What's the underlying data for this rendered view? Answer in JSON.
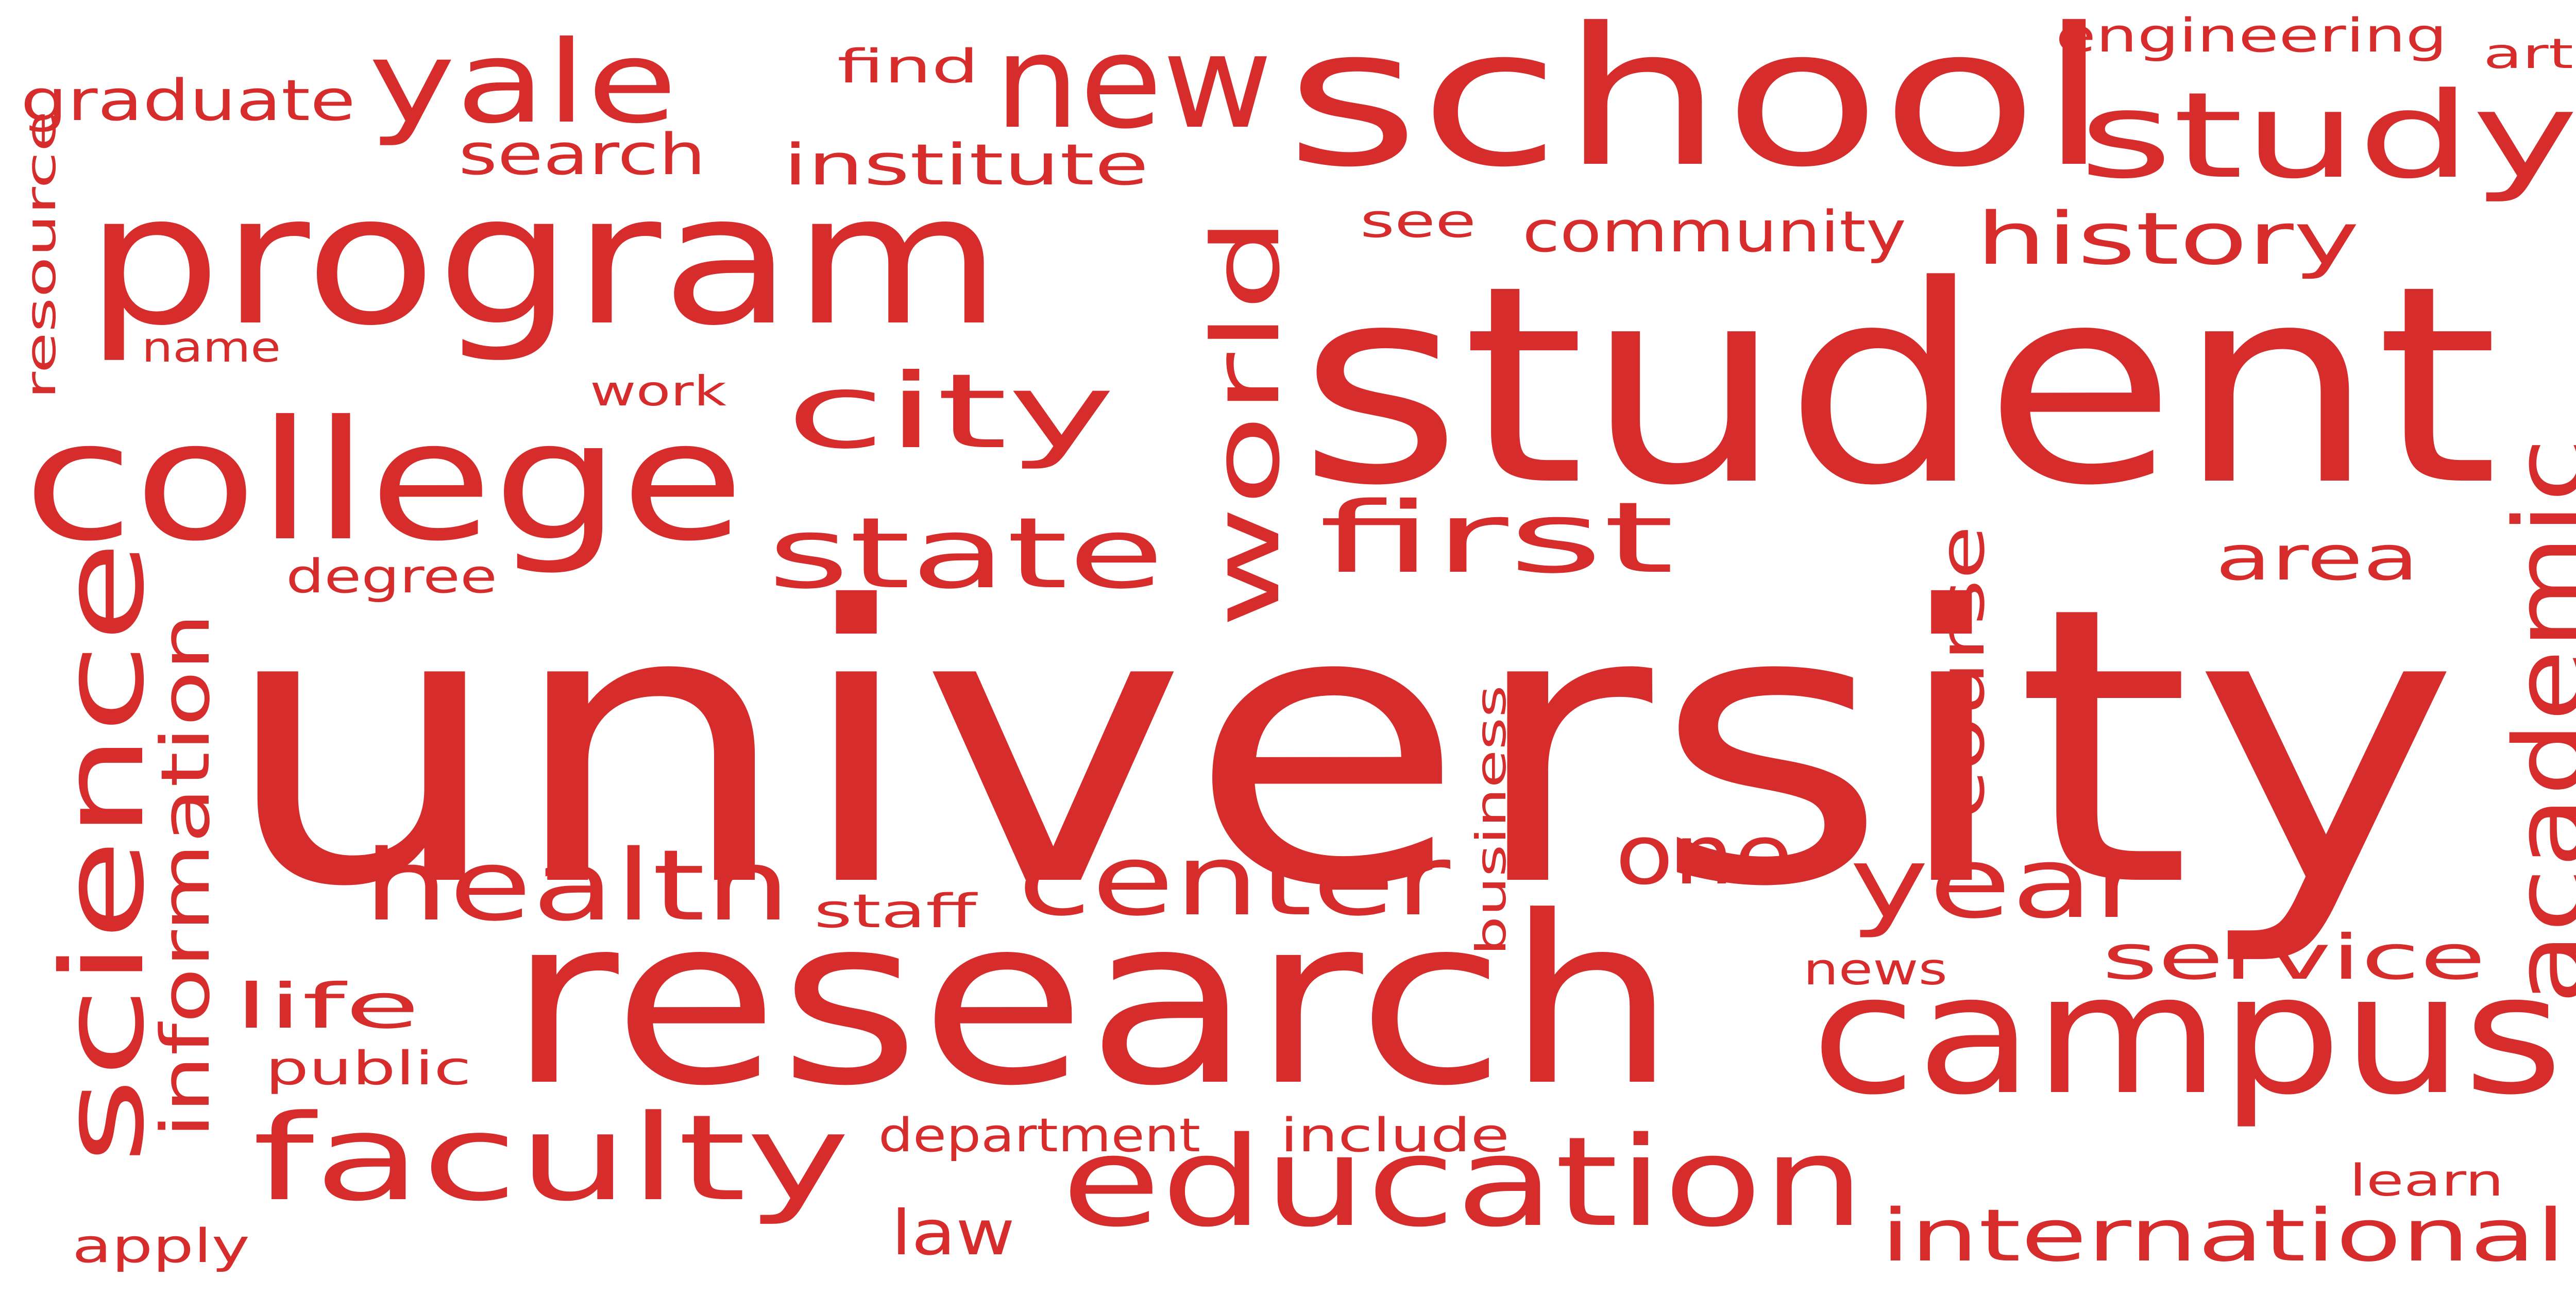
{
  "word_cloud": {
    "color": "#d62c2c",
    "background": "#ffffff",
    "words": [
      {
        "id": "university",
        "text": "university"
      },
      {
        "id": "student",
        "text": "student"
      },
      {
        "id": "research",
        "text": "research"
      },
      {
        "id": "school",
        "text": "school"
      },
      {
        "id": "program",
        "text": "program"
      },
      {
        "id": "campus",
        "text": "campus"
      },
      {
        "id": "college",
        "text": "college"
      },
      {
        "id": "science",
        "text": "science"
      },
      {
        "id": "education",
        "text": "education"
      },
      {
        "id": "faculty",
        "text": "faculty"
      },
      {
        "id": "study",
        "text": "study"
      },
      {
        "id": "new",
        "text": "new"
      },
      {
        "id": "yale",
        "text": "yale"
      },
      {
        "id": "world",
        "text": "world"
      },
      {
        "id": "academic",
        "text": "academic"
      },
      {
        "id": "state",
        "text": "state"
      },
      {
        "id": "first",
        "text": "first"
      },
      {
        "id": "city",
        "text": "city"
      },
      {
        "id": "health",
        "text": "health"
      },
      {
        "id": "center",
        "text": "center"
      },
      {
        "id": "year",
        "text": "year"
      },
      {
        "id": "one",
        "text": "one"
      },
      {
        "id": "international",
        "text": "international"
      },
      {
        "id": "history",
        "text": "history"
      },
      {
        "id": "course",
        "text": "course"
      },
      {
        "id": "information",
        "text": "information"
      },
      {
        "id": "service",
        "text": "service"
      },
      {
        "id": "area",
        "text": "area"
      },
      {
        "id": "life",
        "text": "life"
      },
      {
        "id": "community",
        "text": "community"
      },
      {
        "id": "institute",
        "text": "institute"
      },
      {
        "id": "graduate",
        "text": "graduate"
      },
      {
        "id": "search",
        "text": "search"
      },
      {
        "id": "engineering",
        "text": "engineering"
      },
      {
        "id": "business",
        "text": "business"
      },
      {
        "id": "law",
        "text": "law"
      },
      {
        "id": "department",
        "text": "department"
      },
      {
        "id": "include",
        "text": "include"
      },
      {
        "id": "see",
        "text": "see"
      },
      {
        "id": "find",
        "text": "find"
      },
      {
        "id": "degree",
        "text": "degree"
      },
      {
        "id": "public",
        "text": "public"
      },
      {
        "id": "apply",
        "text": "apply"
      },
      {
        "id": "staff",
        "text": "staff"
      },
      {
        "id": "work",
        "text": "work"
      },
      {
        "id": "name",
        "text": "name"
      },
      {
        "id": "resource",
        "text": "resource"
      },
      {
        "id": "art",
        "text": "art"
      },
      {
        "id": "news",
        "text": "news"
      },
      {
        "id": "learn",
        "text": "learn"
      }
    ]
  }
}
